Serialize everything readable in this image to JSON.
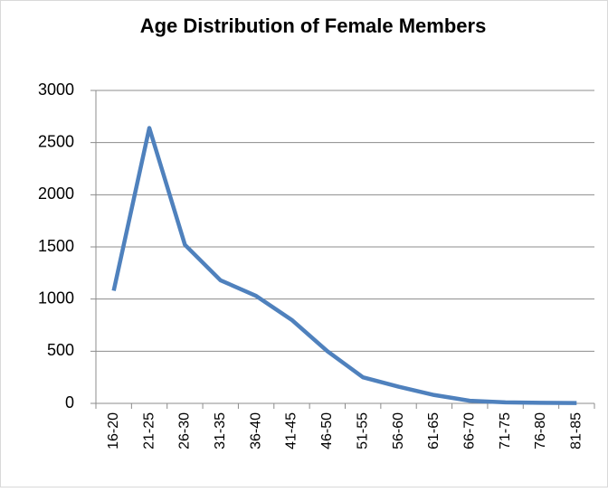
{
  "chart_data": {
    "type": "line",
    "title": "Age Distribution of Female Members",
    "categories": [
      "16-20",
      "21-25",
      "26-30",
      "31-35",
      "36-40",
      "41-45",
      "46-50",
      "51-55",
      "56-60",
      "61-65",
      "66-70",
      "71-75",
      "76-80",
      "81-85"
    ],
    "series": [
      {
        "name": "Female Members",
        "color": "#4f81bd",
        "values": [
          1080,
          2640,
          1520,
          1180,
          1030,
          800,
          500,
          250,
          160,
          80,
          25,
          10,
          5,
          3
        ]
      }
    ],
    "ylim": [
      0,
      3000
    ],
    "yticks": [
      0,
      500,
      1000,
      1500,
      2000,
      2500,
      3000
    ],
    "grid": true
  }
}
